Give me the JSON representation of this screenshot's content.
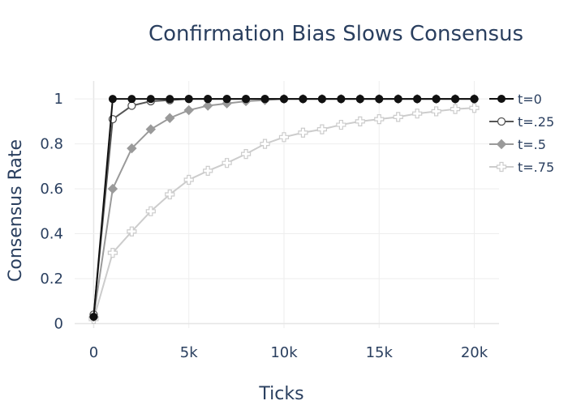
{
  "chart_data": {
    "type": "line",
    "title": "Confirmation Bias Slows Consensus",
    "xlabel": "Ticks",
    "ylabel": "Consensus Rate",
    "xlim": [
      -1000,
      21300
    ],
    "ylim": [
      -0.02,
      1.08
    ],
    "xticks": [
      0,
      5000,
      10000,
      15000,
      20000
    ],
    "xtick_labels": [
      "0",
      "5k",
      "10k",
      "15k",
      "20k"
    ],
    "yticks": [
      0,
      0.2,
      0.4,
      0.6,
      0.8,
      1
    ],
    "ytick_labels": [
      "0",
      "0.2",
      "0.4",
      "0.6",
      "0.8",
      "1"
    ],
    "grid": true,
    "legend": "top-right",
    "x": [
      0,
      1000,
      2000,
      3000,
      4000,
      5000,
      6000,
      7000,
      8000,
      9000,
      10000,
      11000,
      12000,
      13000,
      14000,
      15000,
      16000,
      17000,
      18000,
      19000,
      20000
    ],
    "series": [
      {
        "name": "t=0",
        "color": "#111111",
        "marker": "circle-filled",
        "values": [
          0.03,
          1,
          1,
          1,
          1,
          1,
          1,
          1,
          1,
          1,
          1,
          1,
          1,
          1,
          1,
          1,
          1,
          1,
          1,
          1,
          1
        ]
      },
      {
        "name": "t=.25",
        "color": "#555555",
        "marker": "circle-open",
        "values": [
          0.04,
          0.91,
          0.97,
          0.99,
          0.995,
          1,
          1,
          1,
          1,
          1,
          1,
          1,
          1,
          1,
          1,
          1,
          1,
          1,
          1,
          1,
          1
        ]
      },
      {
        "name": "t=.5",
        "color": "#9a9a9a",
        "marker": "diamond",
        "values": [
          0.03,
          0.6,
          0.78,
          0.865,
          0.915,
          0.95,
          0.97,
          0.98,
          0.99,
          0.995,
          1,
          1,
          1,
          1,
          1,
          1,
          1,
          1,
          1,
          1,
          1
        ]
      },
      {
        "name": "t=.75",
        "color": "#cccccc",
        "marker": "cross-open",
        "values": [
          0.02,
          0.315,
          0.41,
          0.5,
          0.575,
          0.64,
          0.68,
          0.715,
          0.755,
          0.8,
          0.83,
          0.85,
          0.865,
          0.885,
          0.9,
          0.91,
          0.92,
          0.935,
          0.945,
          0.955,
          0.96
        ]
      }
    ]
  }
}
